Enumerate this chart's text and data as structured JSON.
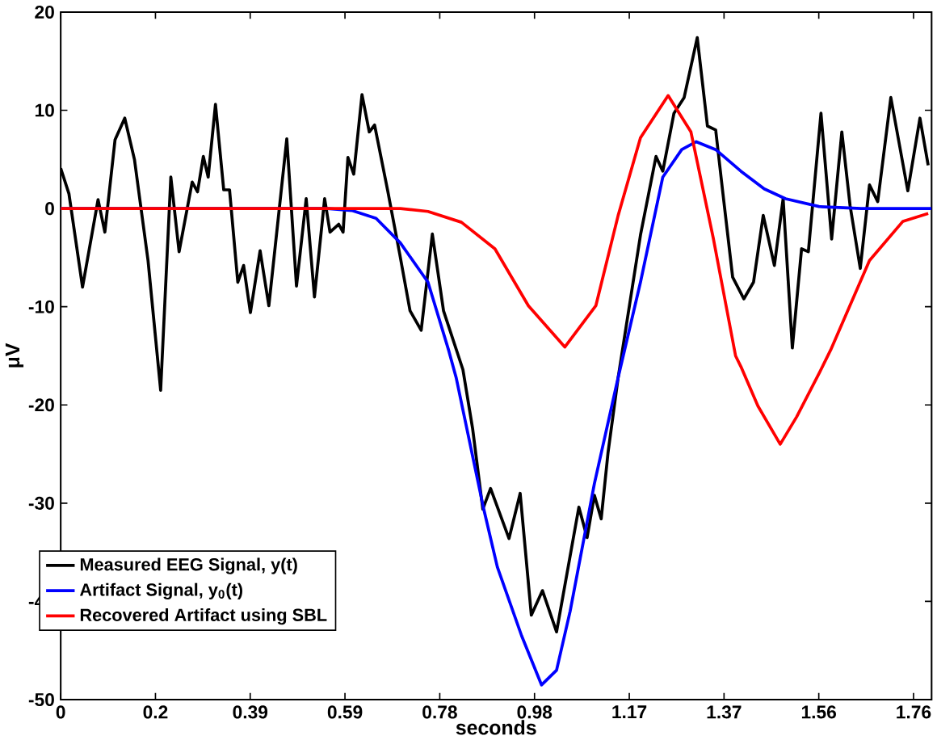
{
  "chart_data": {
    "type": "line",
    "xlabel": "seconds",
    "ylabel": "μV",
    "xlim": [
      0,
      1.795
    ],
    "ylim": [
      -50,
      20
    ],
    "xticks": [
      0,
      {
        "value": 0.1953,
        "label": "0.2"
      },
      {
        "value": 0.3906,
        "label": "0.39"
      },
      {
        "value": 0.5859,
        "label": "0.59"
      },
      {
        "value": 0.7813,
        "label": "0.78"
      },
      {
        "value": 0.9766,
        "label": "0.98"
      },
      {
        "value": 1.1719,
        "label": "1.17"
      },
      {
        "value": 1.3672,
        "label": "1.37"
      },
      {
        "value": 1.5625,
        "label": "1.56"
      },
      {
        "value": 1.7578,
        "label": "1.76"
      }
    ],
    "yticks": [
      -50,
      -40,
      -30,
      -20,
      -10,
      0,
      10,
      20
    ],
    "grid": false,
    "legend": "bottom left",
    "marker": "none",
    "line_style": "solid",
    "series": [
      {
        "name": "Measured EEG Signal, y(t)",
        "color": "#000000",
        "x": [
          0,
          0.017,
          0.045,
          0.077,
          0.091,
          0.112,
          0.132,
          0.152,
          0.18,
          0.206,
          0.227,
          0.244,
          0.271,
          0.282,
          0.294,
          0.304,
          0.319,
          0.336,
          0.348,
          0.365,
          0.377,
          0.391,
          0.411,
          0.429,
          0.466,
          0.486,
          0.506,
          0.523,
          0.544,
          0.555,
          0.573,
          0.582,
          0.592,
          0.604,
          0.621,
          0.636,
          0.647,
          0.674,
          0.699,
          0.72,
          0.743,
          0.766,
          0.789,
          0.829,
          0.849,
          0.87,
          0.886,
          0.924,
          0.947,
          0.97,
          0.993,
          1.022,
          1.068,
          1.085,
          1.1,
          1.114,
          1.128,
          1.149,
          1.195,
          1.227,
          1.241,
          1.264,
          1.285,
          1.312,
          1.333,
          1.35,
          1.365,
          1.385,
          1.408,
          1.428,
          1.448,
          1.471,
          1.489,
          1.508,
          1.527,
          1.541,
          1.567,
          1.589,
          1.61,
          1.627,
          1.648,
          1.667,
          1.684,
          1.711,
          1.746,
          1.771,
          1.788
        ],
        "values": [
          4.1,
          1.5,
          -8.0,
          0.9,
          -2.4,
          7.0,
          9.2,
          5.0,
          -5.3,
          -18.5,
          3.2,
          -4.4,
          2.7,
          1.7,
          5.3,
          3.2,
          10.6,
          1.9,
          1.9,
          -7.5,
          -5.8,
          -10.6,
          -4.3,
          -9.9,
          7.1,
          -7.9,
          1.0,
          -9.0,
          1.0,
          -2.4,
          -1.6,
          -2.4,
          5.2,
          3.5,
          11.6,
          7.8,
          8.5,
          1.8,
          -4.7,
          -10.4,
          -12.4,
          -2.6,
          -10.4,
          -16.4,
          -22.4,
          -30.6,
          -28.5,
          -33.6,
          -29.0,
          -41.4,
          -38.9,
          -43.1,
          -30.4,
          -33.5,
          -29.2,
          -31.6,
          -24.9,
          -17.2,
          -2.7,
          5.3,
          3.8,
          9.7,
          11.3,
          17.4,
          8.4,
          8.0,
          1.5,
          -7.0,
          -9.2,
          -7.5,
          -0.7,
          -5.8,
          1.0,
          -14.2,
          -4.1,
          -4.4,
          9.7,
          -3.1,
          7.8,
          0.3,
          -6.1,
          2.4,
          0.7,
          11.3,
          1.8,
          9.2,
          4.4
        ]
      },
      {
        "name": "Artifact Signal, y$_{0}$(t)",
        "color": "#0000ff",
        "x": [
          0,
          0.55,
          0.6,
          0.65,
          0.7,
          0.757,
          0.8,
          0.815,
          0.871,
          0.9,
          0.95,
          0.991,
          1.022,
          1.05,
          1.1,
          1.149,
          1.195,
          1.241,
          1.28,
          1.31,
          1.35,
          1.402,
          1.45,
          1.494,
          1.563,
          1.65,
          1.795
        ],
        "values": [
          0,
          0,
          -0.2,
          -1.0,
          -3.5,
          -7.5,
          -14.5,
          -17.2,
          -30.4,
          -36.5,
          -43.5,
          -48.5,
          -47,
          -41,
          -28,
          -17.2,
          -7.5,
          3.2,
          6.0,
          6.8,
          6.0,
          3.8,
          2.0,
          1.0,
          0.2,
          0,
          0
        ]
      },
      {
        "name": "Recovered Artifact using SBL",
        "color": "#ff0000",
        "x": [
          0,
          0.6,
          0.7,
          0.757,
          0.826,
          0.895,
          0.964,
          1.039,
          1.103,
          1.149,
          1.195,
          1.252,
          1.299,
          1.345,
          1.391,
          1.402,
          1.437,
          1.483,
          1.517,
          1.564,
          1.587,
          1.667,
          1.736,
          1.788
        ],
        "values": [
          0,
          0,
          0,
          -0.3,
          -1.4,
          -4.1,
          -9.9,
          -14.1,
          -9.9,
          -0.7,
          7.2,
          11.5,
          7.8,
          -3.0,
          -15,
          -16.1,
          -20.1,
          -24,
          -21.2,
          -16.7,
          -14.4,
          -5.3,
          -1.3,
          -0.5
        ]
      }
    ]
  }
}
